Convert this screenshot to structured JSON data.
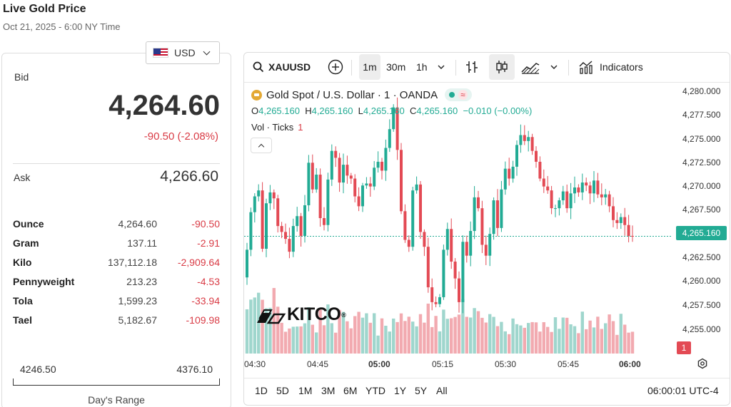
{
  "header": {
    "title": "Live Gold Price",
    "subtitle": "Oct 21, 2025 - 6:00 NY Time"
  },
  "currency": {
    "selected": "USD",
    "flag_icon": "us-flag-icon"
  },
  "quote": {
    "bid_label": "Bid",
    "bid": "4,264.60",
    "change": "-90.50 (-2.08%)",
    "ask_label": "Ask",
    "ask": "4,266.60"
  },
  "units": [
    {
      "name": "Ounce",
      "price": "4,264.60",
      "change": "-90.50"
    },
    {
      "name": "Gram",
      "price": "137.11",
      "change": "-2.91"
    },
    {
      "name": "Kilo",
      "price": "137,112.18",
      "change": "-2,909.64"
    },
    {
      "name": "Pennyweight",
      "price": "213.23",
      "change": "-4.53"
    },
    {
      "name": "Tola",
      "price": "1,599.23",
      "change": "-33.94"
    },
    {
      "name": "Tael",
      "price": "5,182.67",
      "change": "-109.98"
    }
  ],
  "days_range": {
    "low": "4246.50",
    "high": "4376.10",
    "label": "Day's Range"
  },
  "toolbar": {
    "symbol": "XAUUSD",
    "intervals": [
      "1m",
      "30m",
      "1h"
    ],
    "active_interval": "1m",
    "indicators_label": "Indicators"
  },
  "legend": {
    "title": "Gold Spot / U.S. Dollar · 1 · OANDA",
    "o_label": "O",
    "o": "4,265.160",
    "h_label": "H",
    "h": "4,265.160",
    "l_label": "L",
    "l": "4,265.160",
    "c_label": "C",
    "c": "4,265.160",
    "change": "−0.010 (−0.00%)",
    "vol_label": "Vol · Ticks",
    "vol_value": "1",
    "wave_symbol": "≈"
  },
  "watermark": "KITCO",
  "current_price_tag": "4,265.160",
  "volume_tag": "1",
  "range_buttons": [
    "1D",
    "5D",
    "1M",
    "3M",
    "6M",
    "YTD",
    "1Y",
    "5Y",
    "All"
  ],
  "clock": "06:00:01 UTC-4",
  "colors": {
    "up": "#22ab94",
    "down": "#e34a54",
    "up_volume": "#9fd6cd",
    "down_volume": "#f2aab0"
  },
  "chart_data": {
    "type": "candlestick",
    "x_ticks": [
      "04:30",
      "04:45",
      "05:00",
      "05:15",
      "05:30",
      "05:45",
      "06:00"
    ],
    "x_ticks_bold": [
      "05:00",
      "06:00"
    ],
    "y_ticks": [
      "4,280.000",
      "4,277.500",
      "4,275.000",
      "4,272.500",
      "4,270.000",
      "4,267.500",
      "4,265.000",
      "4,262.500",
      "4,260.000",
      "4,257.500",
      "4,255.000"
    ],
    "ylim": [
      4253.3,
      4280.7
    ],
    "start_time": "04:30",
    "interval_minutes": 1,
    "current_price": 4265.16,
    "closes": [
      4263.8,
      4267.6,
      4269.2,
      4269.8,
      4263.9,
      4268.5,
      4269.6,
      4269.0,
      4266.2,
      4265.6,
      4264.9,
      4263.6,
      4266.2,
      4267.2,
      4265.2,
      4268.3,
      4272.6,
      4269.9,
      4271.4,
      4267.0,
      4266.3,
      4270.9,
      4273.8,
      4273.1,
      4270.6,
      4272.4,
      4271.3,
      4271.0,
      4269.2,
      4268.2,
      4270.3,
      4270.5,
      4270.2,
      4272.1,
      4272.7,
      4271.8,
      4274.1,
      4276.0,
      4278.2,
      4273.9,
      4267.7,
      4264.8,
      4264.1,
      4269.8,
      4270.4,
      4265.6,
      4264.1,
      4260.0,
      4258.5,
      4258.3,
      4259.0,
      4263.8,
      4265.9,
      4262.6,
      4260.9,
      4258.5,
      4264.6,
      4263.2,
      4265.7,
      4269.1,
      4268.0,
      4264.3,
      4263.2,
      4265.4,
      4268.8,
      4266.0,
      4269.9,
      4272.0,
      4271.0,
      4272.2,
      4274.4,
      4275.4,
      4274.8,
      4275.2,
      4273.8,
      4272.7,
      4271.0,
      4270.2,
      4269.8,
      4268.0,
      4268.0,
      4268.8,
      4269.7,
      4268.0,
      4269.5,
      4270.1,
      4269.6,
      4270.6,
      4270.3,
      4269.5,
      4270.8,
      4269.4,
      4269.1,
      4269.4,
      4268.2,
      4266.8,
      4266.5,
      4267.1,
      4266.3,
      4265.2,
      4265.16
    ]
  }
}
